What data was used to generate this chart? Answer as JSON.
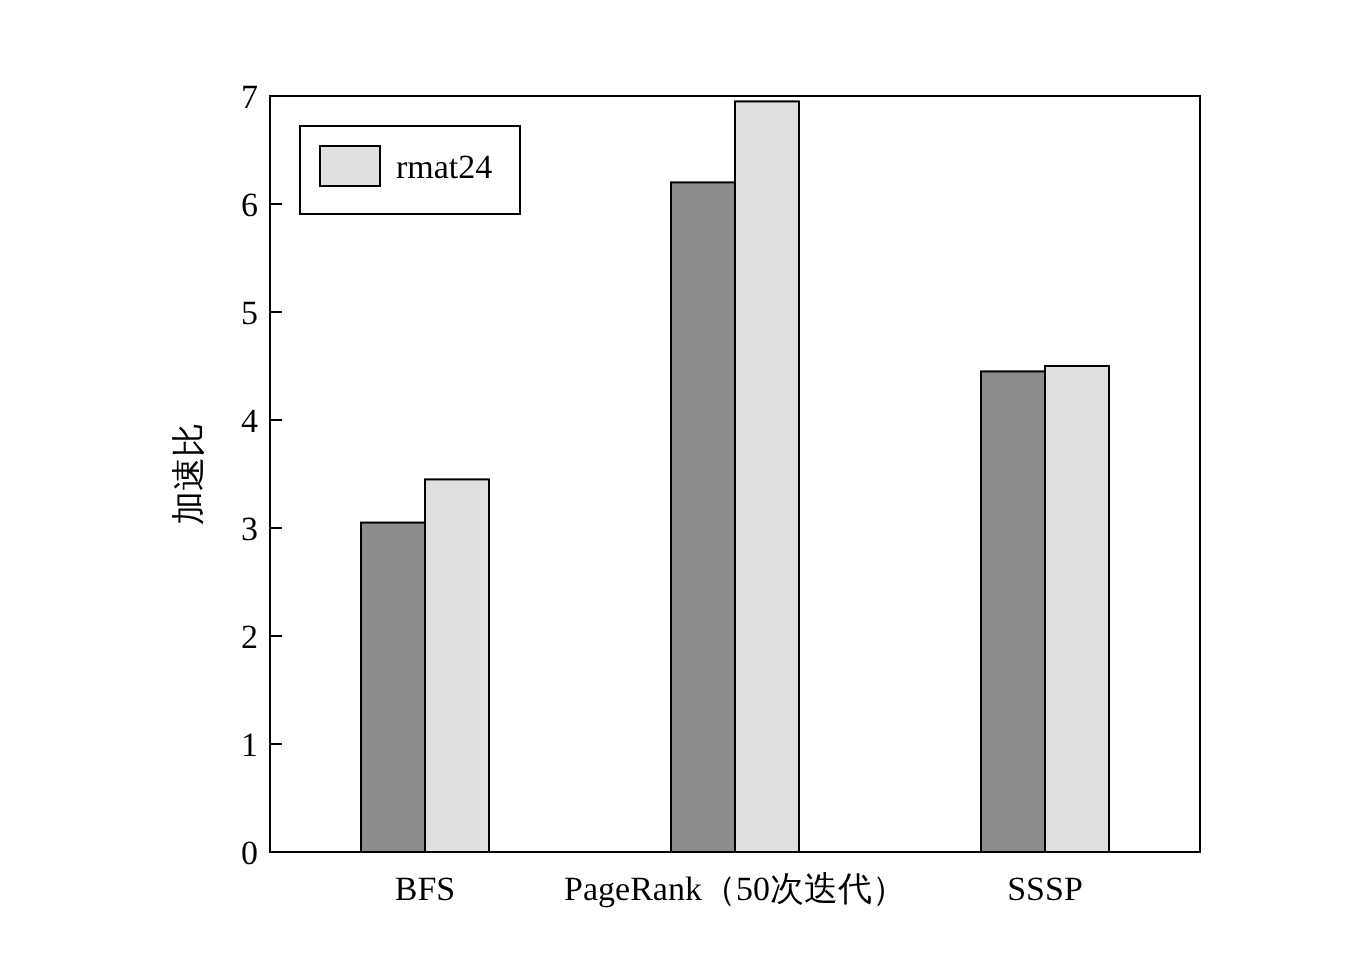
{
  "chart_data": {
    "type": "bar",
    "ylabel": "加速比",
    "categories": [
      "BFS",
      "PageRank（50次迭代）",
      "SSSP"
    ],
    "series": [
      {
        "color": "#8c8c8c",
        "values": [
          3.05,
          6.2,
          4.45
        ]
      },
      {
        "name": "rmat24",
        "color": "#e0e0e0",
        "values": [
          3.45,
          6.95,
          4.5
        ]
      }
    ],
    "ylim": [
      0,
      7
    ],
    "yticks": [
      0,
      1,
      2,
      3,
      4,
      5,
      6,
      7
    ],
    "legend": "top left"
  }
}
